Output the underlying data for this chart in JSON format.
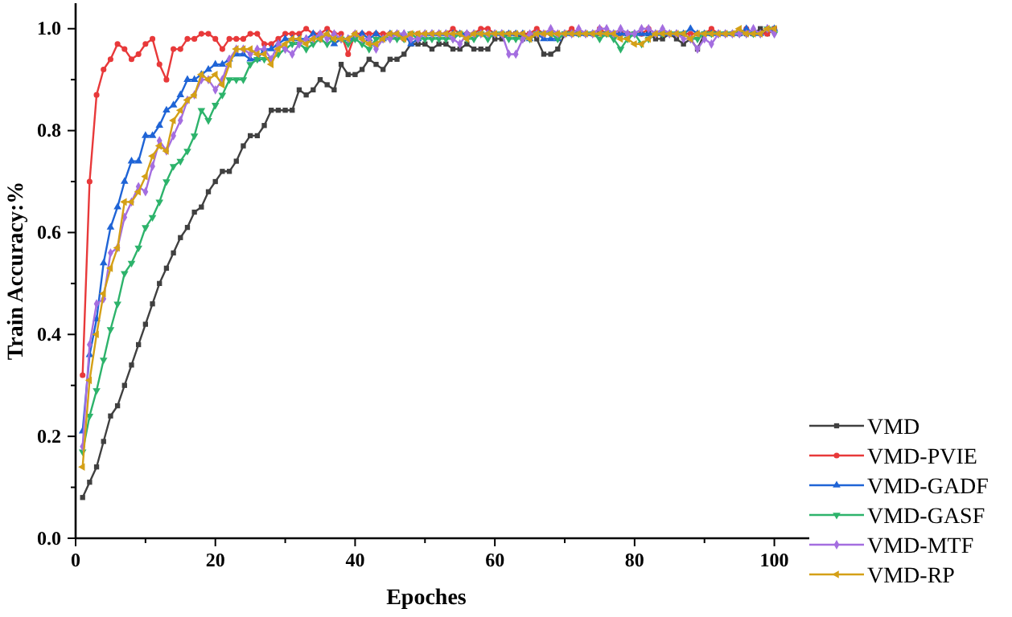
{
  "chart_data": {
    "type": "line",
    "xlabel": "Epoches",
    "ylabel": "Train Accuracy:%",
    "x": [
      1,
      2,
      3,
      4,
      5,
      6,
      7,
      8,
      9,
      10,
      11,
      12,
      13,
      14,
      15,
      16,
      17,
      18,
      19,
      20,
      21,
      22,
      23,
      24,
      25,
      26,
      27,
      28,
      29,
      30,
      31,
      32,
      33,
      34,
      35,
      36,
      37,
      38,
      39,
      40,
      41,
      42,
      43,
      44,
      45,
      46,
      47,
      48,
      49,
      50,
      51,
      52,
      53,
      54,
      55,
      56,
      57,
      58,
      59,
      60,
      61,
      62,
      63,
      64,
      65,
      66,
      67,
      68,
      69,
      70,
      71,
      72,
      73,
      74,
      75,
      76,
      77,
      78,
      79,
      80,
      81,
      82,
      83,
      84,
      85,
      86,
      87,
      88,
      89,
      90,
      91,
      92,
      93,
      94,
      95,
      96,
      97,
      98,
      99,
      100
    ],
    "series": [
      {
        "name": "VMD",
        "color": "#404040",
        "marker": "square",
        "values": [
          0.08,
          0.11,
          0.14,
          0.19,
          0.24,
          0.26,
          0.3,
          0.34,
          0.38,
          0.42,
          0.46,
          0.5,
          0.53,
          0.56,
          0.59,
          0.61,
          0.64,
          0.65,
          0.68,
          0.7,
          0.72,
          0.72,
          0.74,
          0.77,
          0.79,
          0.79,
          0.81,
          0.84,
          0.84,
          0.84,
          0.84,
          0.88,
          0.87,
          0.88,
          0.9,
          0.89,
          0.88,
          0.93,
          0.91,
          0.91,
          0.92,
          0.94,
          0.93,
          0.92,
          0.94,
          0.94,
          0.95,
          0.97,
          0.97,
          0.97,
          0.96,
          0.97,
          0.97,
          0.96,
          0.96,
          0.97,
          0.96,
          0.96,
          0.96,
          0.98,
          0.98,
          0.99,
          0.99,
          0.98,
          0.99,
          0.98,
          0.95,
          0.95,
          0.96,
          0.99,
          0.99,
          0.99,
          0.99,
          0.99,
          0.99,
          0.99,
          0.99,
          0.99,
          0.99,
          0.99,
          0.99,
          0.99,
          0.98,
          0.98,
          0.99,
          0.98,
          0.97,
          0.98,
          0.96,
          0.99,
          0.99,
          0.99,
          0.99,
          0.99,
          0.99,
          0.99,
          0.99,
          1.0,
          0.99,
          1.0
        ]
      },
      {
        "name": "VMD-PVIE",
        "color": "#e8393a",
        "marker": "circle",
        "values": [
          0.32,
          0.7,
          0.87,
          0.92,
          0.94,
          0.97,
          0.96,
          0.94,
          0.95,
          0.97,
          0.98,
          0.93,
          0.9,
          0.96,
          0.96,
          0.98,
          0.98,
          0.99,
          0.99,
          0.98,
          0.96,
          0.98,
          0.98,
          0.98,
          0.99,
          0.99,
          0.97,
          0.97,
          0.98,
          0.99,
          0.99,
          0.99,
          1.0,
          0.99,
          0.99,
          1.0,
          0.99,
          0.99,
          0.95,
          0.99,
          0.99,
          0.99,
          0.99,
          0.99,
          0.99,
          0.99,
          0.98,
          0.99,
          0.99,
          0.99,
          0.99,
          0.99,
          0.99,
          1.0,
          0.99,
          0.99,
          0.99,
          1.0,
          1.0,
          0.99,
          0.99,
          0.99,
          0.99,
          0.99,
          0.99,
          1.0,
          0.99,
          0.99,
          0.99,
          0.99,
          1.0,
          0.99,
          0.99,
          0.99,
          1.0,
          0.99,
          0.99,
          0.99,
          0.99,
          0.99,
          0.99,
          1.0,
          0.99,
          0.99,
          0.99,
          0.99,
          0.99,
          0.99,
          0.99,
          0.99,
          1.0,
          0.99,
          0.99,
          0.99,
          0.99,
          1.0,
          0.99,
          0.99,
          0.99,
          1.0
        ]
      },
      {
        "name": "VMD-GADF",
        "color": "#1f64d6",
        "marker": "triangle",
        "values": [
          0.21,
          0.36,
          0.43,
          0.54,
          0.61,
          0.65,
          0.7,
          0.74,
          0.74,
          0.79,
          0.79,
          0.81,
          0.84,
          0.85,
          0.87,
          0.9,
          0.9,
          0.91,
          0.92,
          0.93,
          0.93,
          0.94,
          0.95,
          0.95,
          0.94,
          0.94,
          0.96,
          0.96,
          0.97,
          0.98,
          0.98,
          0.98,
          0.98,
          0.99,
          0.98,
          0.99,
          0.97,
          0.98,
          0.98,
          0.98,
          0.99,
          0.98,
          0.99,
          0.98,
          0.99,
          0.99,
          0.99,
          0.97,
          0.98,
          0.99,
          0.99,
          0.99,
          0.99,
          0.99,
          0.99,
          0.99,
          0.99,
          0.99,
          0.99,
          0.99,
          0.99,
          0.99,
          0.99,
          0.99,
          0.98,
          0.99,
          0.98,
          0.98,
          0.98,
          0.99,
          0.99,
          0.99,
          0.99,
          0.99,
          0.99,
          0.99,
          0.99,
          0.99,
          0.99,
          0.99,
          0.99,
          0.99,
          0.99,
          0.99,
          0.99,
          0.99,
          0.99,
          1.0,
          0.99,
          0.99,
          0.99,
          0.99,
          0.99,
          0.99,
          0.99,
          1.0,
          0.99,
          0.99,
          1.0,
          1.0
        ]
      },
      {
        "name": "VMD-GASF",
        "color": "#2db36b",
        "marker": "triangle-down",
        "values": [
          0.17,
          0.24,
          0.29,
          0.35,
          0.41,
          0.46,
          0.52,
          0.54,
          0.57,
          0.61,
          0.63,
          0.66,
          0.7,
          0.73,
          0.74,
          0.76,
          0.79,
          0.84,
          0.82,
          0.85,
          0.87,
          0.9,
          0.9,
          0.9,
          0.93,
          0.94,
          0.94,
          0.94,
          0.95,
          0.96,
          0.97,
          0.97,
          0.96,
          0.97,
          0.98,
          0.97,
          0.98,
          0.98,
          0.97,
          0.98,
          0.97,
          0.96,
          0.98,
          0.98,
          0.98,
          0.98,
          0.98,
          0.99,
          0.98,
          0.98,
          0.98,
          0.98,
          0.98,
          0.98,
          0.99,
          0.98,
          0.98,
          0.99,
          0.98,
          0.99,
          0.99,
          0.98,
          0.98,
          0.98,
          0.98,
          0.99,
          0.99,
          0.99,
          0.98,
          0.99,
          0.99,
          0.99,
          0.99,
          0.99,
          0.98,
          0.99,
          0.98,
          0.96,
          0.98,
          0.99,
          0.97,
          0.98,
          0.99,
          0.99,
          0.99,
          0.99,
          0.99,
          0.98,
          0.98,
          0.99,
          0.99,
          0.99,
          0.99,
          0.99,
          0.99,
          0.99,
          0.99,
          0.99,
          1.0,
          0.99
        ]
      },
      {
        "name": "VMD-MTF",
        "color": "#a46ee0",
        "marker": "diamond",
        "values": [
          0.18,
          0.38,
          0.46,
          0.47,
          0.56,
          0.57,
          0.63,
          0.66,
          0.69,
          0.68,
          0.73,
          0.78,
          0.76,
          0.79,
          0.82,
          0.86,
          0.87,
          0.9,
          0.9,
          0.88,
          0.9,
          0.94,
          0.96,
          0.96,
          0.95,
          0.96,
          0.96,
          0.94,
          0.97,
          0.96,
          0.95,
          0.97,
          0.98,
          0.98,
          0.99,
          0.98,
          0.99,
          0.98,
          0.98,
          0.99,
          0.98,
          0.98,
          0.96,
          0.98,
          0.98,
          0.99,
          0.99,
          0.98,
          0.98,
          0.99,
          0.99,
          0.99,
          0.99,
          0.98,
          0.97,
          0.99,
          0.99,
          0.99,
          0.99,
          0.99,
          0.99,
          0.95,
          0.95,
          0.98,
          0.99,
          0.99,
          0.99,
          1.0,
          0.99,
          0.99,
          0.99,
          1.0,
          0.99,
          0.99,
          1.0,
          1.0,
          0.99,
          1.0,
          0.99,
          0.99,
          1.0,
          1.0,
          0.99,
          1.0,
          0.99,
          0.99,
          0.98,
          0.98,
          0.96,
          0.98,
          0.97,
          0.99,
          0.99,
          0.99,
          0.99,
          0.99,
          1.0,
          0.99,
          1.0,
          0.99
        ]
      },
      {
        "name": "VMD-RP",
        "color": "#d4a017",
        "marker": "triangle-left",
        "values": [
          0.14,
          0.31,
          0.4,
          0.48,
          0.53,
          0.57,
          0.66,
          0.66,
          0.68,
          0.71,
          0.75,
          0.77,
          0.76,
          0.82,
          0.84,
          0.86,
          0.87,
          0.91,
          0.9,
          0.91,
          0.89,
          0.93,
          0.96,
          0.96,
          0.96,
          0.95,
          0.95,
          0.93,
          0.96,
          0.97,
          0.98,
          0.98,
          0.97,
          0.98,
          0.98,
          0.99,
          0.98,
          0.98,
          0.98,
          0.99,
          0.98,
          0.97,
          0.97,
          0.98,
          0.99,
          0.99,
          0.98,
          0.99,
          0.99,
          0.99,
          0.99,
          0.99,
          0.99,
          0.99,
          0.99,
          0.98,
          0.99,
          0.99,
          0.99,
          0.99,
          0.99,
          0.99,
          0.99,
          0.99,
          0.98,
          0.99,
          0.99,
          0.99,
          0.99,
          0.99,
          0.99,
          0.99,
          0.99,
          0.99,
          0.99,
          0.99,
          0.99,
          0.98,
          0.98,
          0.97,
          0.97,
          0.98,
          0.99,
          0.99,
          0.99,
          0.99,
          0.99,
          0.98,
          0.99,
          0.99,
          0.99,
          0.99,
          0.99,
          0.99,
          1.0,
          0.99,
          0.99,
          0.99,
          1.0,
          1.0
        ]
      }
    ],
    "xlim": [
      0,
      105
    ],
    "xticks": [
      0,
      {
        "value": 10,
        "label": null
      },
      20,
      {
        "value": 30,
        "label": null
      },
      40,
      {
        "value": 50,
        "label": null
      },
      60,
      {
        "value": 70,
        "label": null
      },
      80,
      {
        "value": 90,
        "label": null
      },
      100
    ],
    "ylim": [
      0,
      1.05
    ],
    "yticks": [
      {
        "value": 0,
        "label": "0.0"
      },
      {
        "value": 0.1,
        "label": null
      },
      {
        "value": 0.2,
        "label": "0.2"
      },
      {
        "value": 0.3,
        "label": null
      },
      {
        "value": 0.4,
        "label": "0.4"
      },
      {
        "value": 0.5,
        "label": null
      },
      {
        "value": 0.6,
        "label": "0.6"
      },
      {
        "value": 0.7,
        "label": null
      },
      {
        "value": 0.8,
        "label": "0.8"
      },
      {
        "value": 0.9,
        "label": null
      },
      {
        "value": 1.0,
        "label": "1.0"
      }
    ],
    "grid": false,
    "legend": "bottom right",
    "line_style": "solid"
  }
}
